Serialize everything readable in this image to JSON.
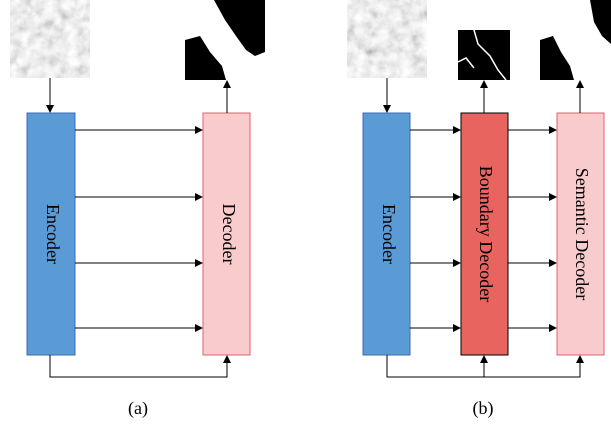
{
  "panels": [
    {
      "caption": "(a)",
      "blocks": [
        "Encoder",
        "Decoder"
      ]
    },
    {
      "caption": "(b)",
      "blocks": [
        "Encoder",
        "Boundary Decoder",
        "Semantic Decoder"
      ]
    }
  ]
}
